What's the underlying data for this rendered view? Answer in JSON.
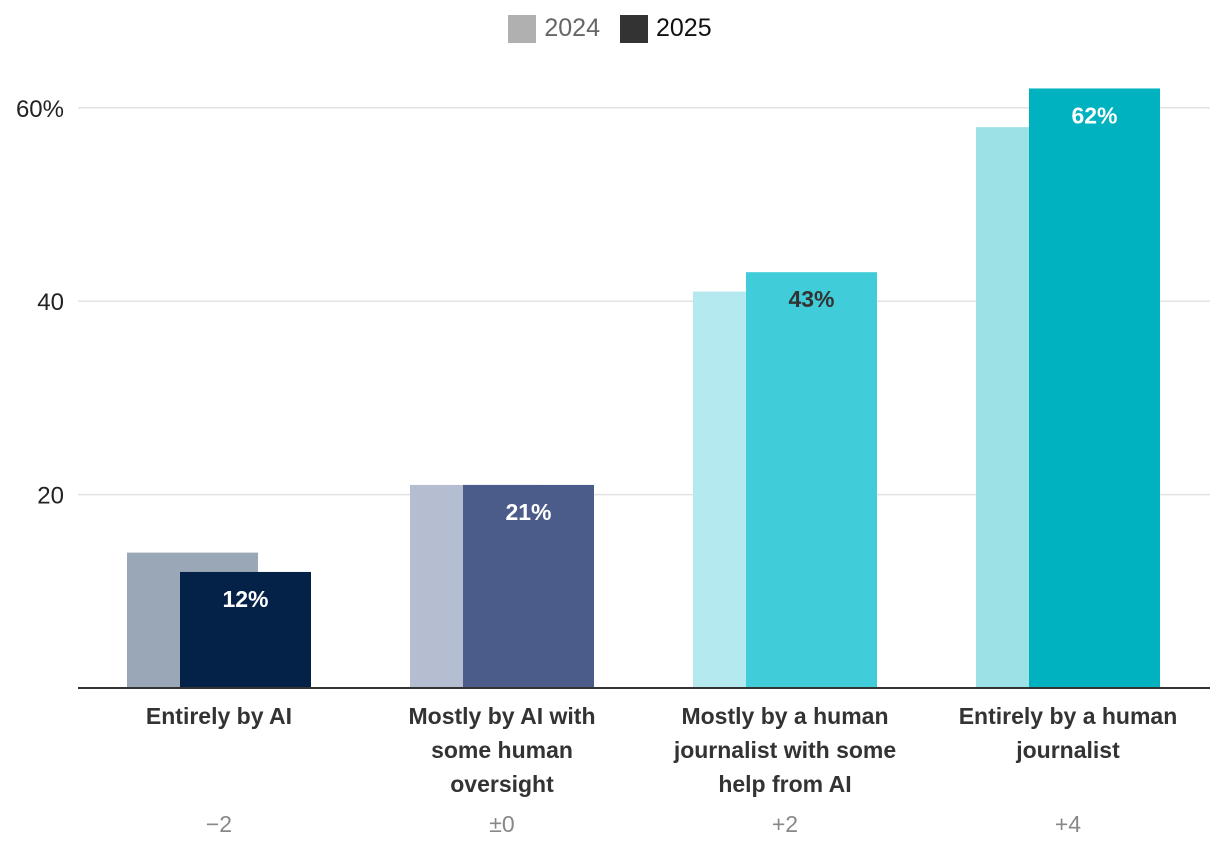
{
  "chart_data": {
    "type": "bar",
    "legend": {
      "position": "top-center",
      "entries": [
        {
          "name": "2024",
          "color": "#b0b0b0"
        },
        {
          "name": "2025",
          "color": "#333333"
        }
      ]
    },
    "categories": [
      "Entirely by AI",
      "Mostly by AI with some human oversight",
      "Mostly by a human journalist with some help from AI",
      "Entirely by a human journalist"
    ],
    "category_lines": [
      [
        "Entirely by AI"
      ],
      [
        "Mostly by AI with",
        "some human",
        "oversight"
      ],
      [
        "Mostly by a human",
        "journalist with some",
        "help from AI"
      ],
      [
        "Entirely by a human",
        "journalist"
      ]
    ],
    "sub_labels": [
      "−2",
      "±0",
      "+2",
      "+4"
    ],
    "series": [
      {
        "name": "2024",
        "values": [
          14,
          21,
          41,
          58
        ],
        "colors": [
          "#9aa7b6",
          "#b5bdd0",
          "#b4eaef",
          "#9be1e5"
        ]
      },
      {
        "name": "2025",
        "values": [
          12,
          21,
          43,
          62
        ],
        "colors": [
          "#042147",
          "#4b5b8a",
          "#40ccd9",
          "#00b2bf"
        ],
        "data_labels": [
          "12%",
          "21%",
          "43%",
          "62%"
        ],
        "label_colors": [
          "#ffffff",
          "#ffffff",
          "#333333",
          "#ffffff"
        ]
      }
    ],
    "y_ticks": [
      {
        "value": 20,
        "label": "20"
      },
      {
        "value": 40,
        "label": "40"
      },
      {
        "value": 60,
        "label": "60%"
      }
    ],
    "ylim": [
      0,
      62
    ],
    "grid": true,
    "title": "",
    "xlabel": "",
    "ylabel": ""
  }
}
